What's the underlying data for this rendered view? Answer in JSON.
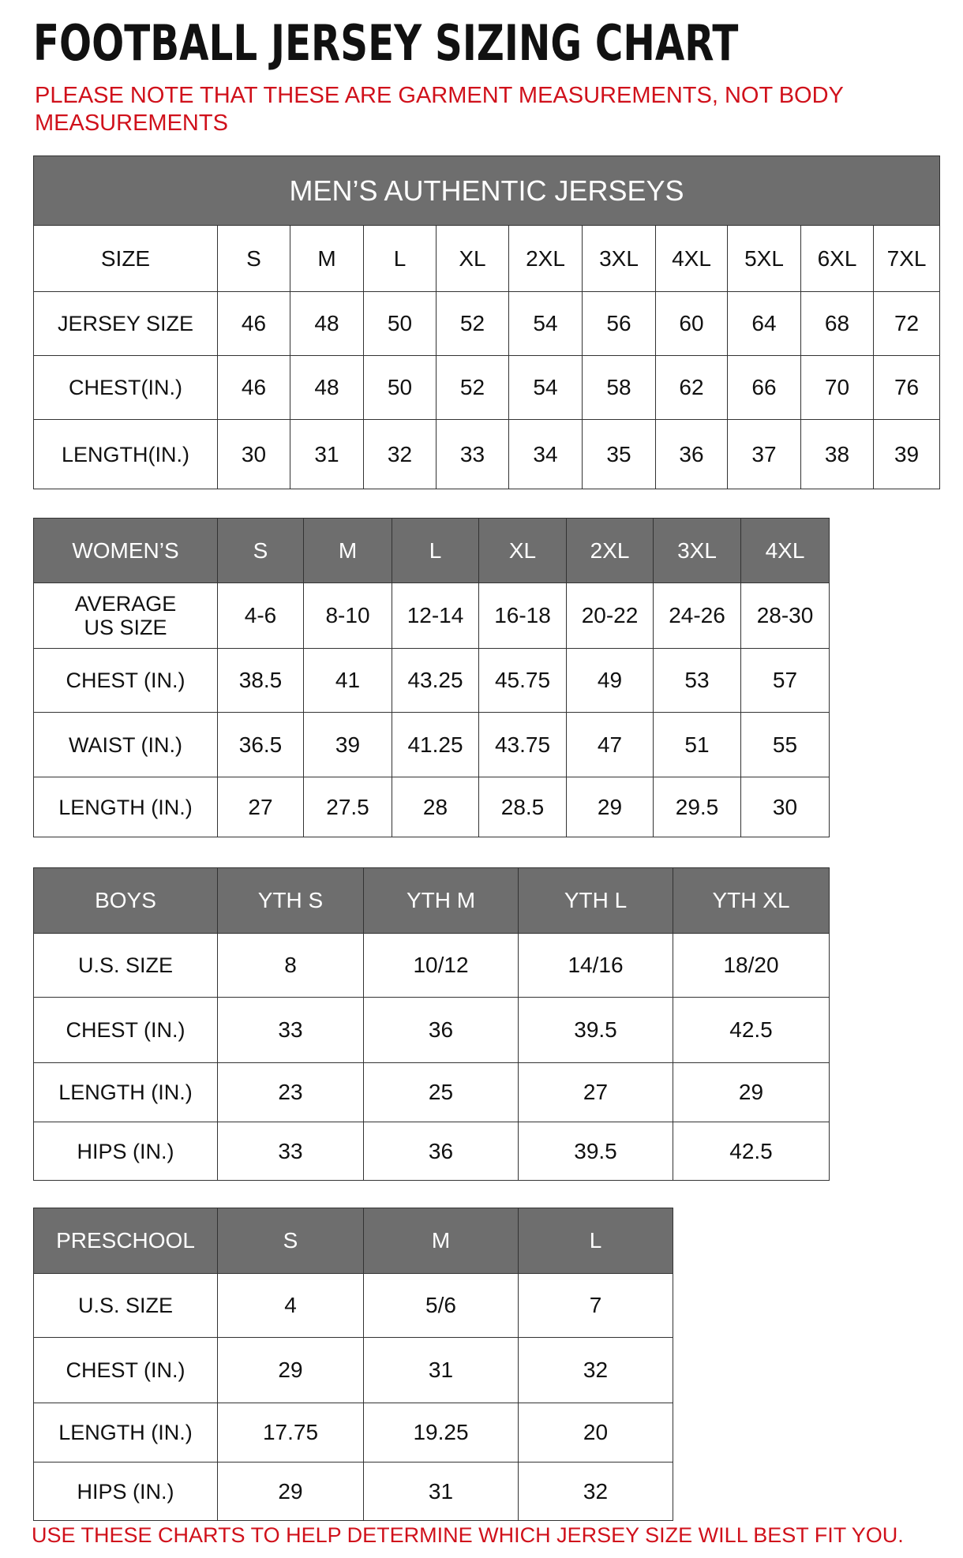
{
  "title": "FOOTBALL JERSEY SIZING CHART",
  "note": "PLEASE NOTE THAT THESE ARE GARMENT MEASUREMENTS, NOT BODY MEASUREMENTS",
  "footer": "USE THESE CHARTS TO HELP DETERMINE WHICH JERSEY SIZE WILL BEST FIT YOU.",
  "colors": {
    "header_bg": "#6e6e6e",
    "note_red": "#d0111b"
  },
  "tables": [
    {
      "id": "mens",
      "band": "MEN’S AUTHENTIC JERSEYS",
      "header_in_band": false,
      "header": [
        "SIZE",
        "S",
        "M",
        "L",
        "XL",
        "2XL",
        "3XL",
        "4XL",
        "5XL",
        "6XL",
        "7XL"
      ],
      "rows": [
        [
          "JERSEY SIZE",
          "46",
          "48",
          "50",
          "52",
          "54",
          "56",
          "60",
          "64",
          "68",
          "72"
        ],
        [
          "CHEST(IN.)",
          "46",
          "48",
          "50",
          "52",
          "54",
          "58",
          "62",
          "66",
          "70",
          "76"
        ],
        [
          "LENGTH(IN.)",
          "30",
          "31",
          "32",
          "33",
          "34",
          "35",
          "36",
          "37",
          "38",
          "39"
        ]
      ]
    },
    {
      "id": "womens",
      "header_in_band": true,
      "header": [
        "WOMEN’S",
        "S",
        "M",
        "L",
        "XL",
        "2XL",
        "3XL",
        "4XL"
      ],
      "rows": [
        [
          "AVERAGE\nUS SIZE",
          "4-6",
          "8-10",
          "12-14",
          "16-18",
          "20-22",
          "24-26",
          "28-30"
        ],
        [
          "CHEST (IN.)",
          "38.5",
          "41",
          "43.25",
          "45.75",
          "49",
          "53",
          "57"
        ],
        [
          "WAIST (IN.)",
          "36.5",
          "39",
          "41.25",
          "43.75",
          "47",
          "51",
          "55"
        ],
        [
          "LENGTH (IN.)",
          "27",
          "27.5",
          "28",
          "28.5",
          "29",
          "29.5",
          "30"
        ]
      ]
    },
    {
      "id": "boys",
      "header_in_band": true,
      "header": [
        "BOYS",
        "YTH S",
        "YTH M",
        "YTH L",
        "YTH XL"
      ],
      "rows": [
        [
          "U.S. SIZE",
          "8",
          "10/12",
          "14/16",
          "18/20"
        ],
        [
          "CHEST (IN.)",
          "33",
          "36",
          "39.5",
          "42.5"
        ],
        [
          "LENGTH (IN.)",
          "23",
          "25",
          "27",
          "29"
        ],
        [
          "HIPS (IN.)",
          "33",
          "36",
          "39.5",
          "42.5"
        ]
      ]
    },
    {
      "id": "preschool",
      "header_in_band": true,
      "header": [
        "PRESCHOOL",
        "S",
        "M",
        "L"
      ],
      "rows": [
        [
          "U.S. SIZE",
          "4",
          "5/6",
          "7"
        ],
        [
          "CHEST (IN.)",
          "29",
          "31",
          "32"
        ],
        [
          "LENGTH (IN.)",
          "17.75",
          "19.25",
          "20"
        ],
        [
          "HIPS (IN.)",
          "29",
          "31",
          "32"
        ]
      ]
    }
  ]
}
